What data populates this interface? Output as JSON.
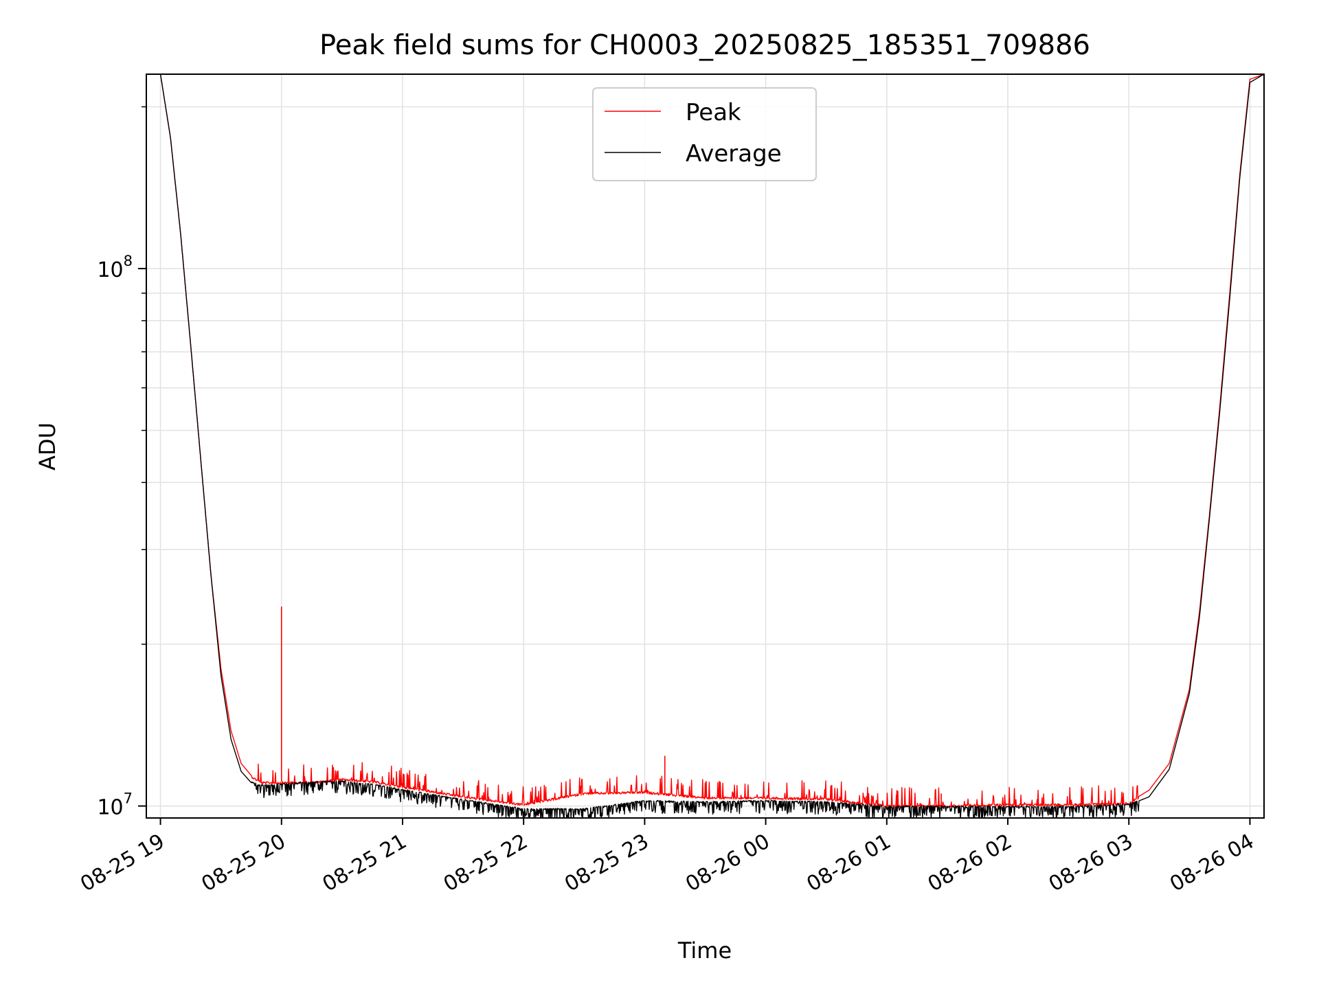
{
  "chart_data": {
    "type": "line",
    "title": "Peak field sums for CH0003_20250825_185351_709886",
    "xlabel": "Time",
    "ylabel": "ADU",
    "yscale": "log",
    "ylim": [
      9500000,
      230000000
    ],
    "xlim": [
      "2025-08-25 18:53",
      "2025-08-26 04:07"
    ],
    "grid": true,
    "legend_position": "upper center",
    "x_tick_labels": [
      "08-25 19",
      "08-25 20",
      "08-25 21",
      "08-25 22",
      "08-25 23",
      "08-26 00",
      "08-26 01",
      "08-26 02",
      "08-26 03",
      "08-26 04"
    ],
    "y_tick_labels": [
      {
        "value": 10000000,
        "base": "10",
        "exp": "7"
      },
      {
        "value": 100000000,
        "base": "10",
        "exp": "8"
      }
    ],
    "x": [
      "2025-08-25 18:53",
      "2025-08-25 19:00",
      "2025-08-25 19:05",
      "2025-08-25 19:10",
      "2025-08-25 19:15",
      "2025-08-25 19:20",
      "2025-08-25 19:25",
      "2025-08-25 19:30",
      "2025-08-25 19:35",
      "2025-08-25 19:40",
      "2025-08-25 19:45",
      "2025-08-25 19:50",
      "2025-08-25 20:00",
      "2025-08-25 20:15",
      "2025-08-25 20:30",
      "2025-08-25 20:45",
      "2025-08-25 21:00",
      "2025-08-25 21:30",
      "2025-08-25 22:00",
      "2025-08-25 22:30",
      "2025-08-25 23:00",
      "2025-08-25 23:30",
      "2025-08-26 00:00",
      "2025-08-26 00:30",
      "2025-08-26 01:00",
      "2025-08-26 01:30",
      "2025-08-26 02:00",
      "2025-08-26 02:30",
      "2025-08-26 03:00",
      "2025-08-26 03:10",
      "2025-08-26 03:20",
      "2025-08-26 03:30",
      "2025-08-26 03:35",
      "2025-08-26 03:40",
      "2025-08-26 03:45",
      "2025-08-26 03:50",
      "2025-08-26 03:55",
      "2025-08-26 04:00",
      "2025-08-26 04:07"
    ],
    "series": [
      {
        "name": "Peak",
        "color": "#ff0000",
        "values": [
          230000000,
          230000000,
          175000000,
          116000000,
          72000000,
          44000000,
          27000000,
          18000000,
          13800000,
          12000000,
          11400000,
          11100000,
          11100000,
          11100000,
          11250000,
          11150000,
          10900000,
          10450000,
          10100000,
          10600000,
          10650000,
          10400000,
          10400000,
          10350000,
          10050000,
          10050000,
          10100000,
          10100000,
          10150000,
          10700000,
          12000000,
          16500000,
          23000000,
          35000000,
          55000000,
          90000000,
          150000000,
          225000000,
          230000000
        ],
        "spikes": [
          {
            "x": "2025-08-25 20:00",
            "value": 23500000
          },
          {
            "x": "2025-08-25 23:10",
            "value": 12400000
          },
          {
            "x": "2025-08-26 01:05",
            "value": 10700000
          },
          {
            "x": "2025-08-26 01:27",
            "value": 10550000
          }
        ]
      },
      {
        "name": "Average",
        "color": "#000000",
        "values": [
          230000000,
          230000000,
          175000000,
          116000000,
          72000000,
          44000000,
          27000000,
          17500000,
          13300000,
          11600000,
          11050000,
          10900000,
          10950000,
          11050000,
          11100000,
          10950000,
          10700000,
          10250000,
          9850000,
          9850000,
          10200000,
          10150000,
          10200000,
          10150000,
          9950000,
          9950000,
          9950000,
          9950000,
          10050000,
          10400000,
          11700000,
          16200000,
          22500000,
          34500000,
          54000000,
          88000000,
          148000000,
          222000000,
          230000000
        ]
      }
    ]
  }
}
